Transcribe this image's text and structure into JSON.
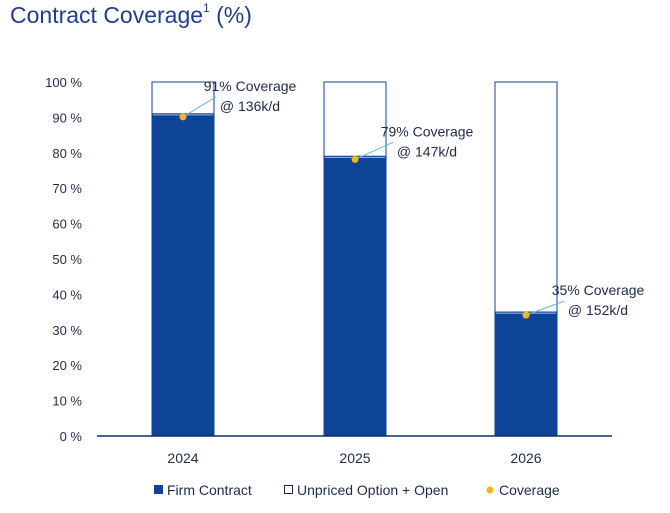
{
  "title": {
    "main": "Contract Coverage",
    "sup": "1",
    "unit": " (%)"
  },
  "chart_data": {
    "type": "bar",
    "stacked": true,
    "categories": [
      "2024",
      "2025",
      "2026"
    ],
    "series": [
      {
        "name": "Firm Contract",
        "values": [
          91,
          79,
          35
        ],
        "color": "#0d4497"
      },
      {
        "name": "Unpriced Option + Open",
        "values": [
          9,
          21,
          65
        ],
        "color": "#ffffff",
        "stroke": "#0d4497"
      }
    ],
    "coverage": {
      "name": "Coverage",
      "values": [
        91,
        79,
        35
      ],
      "color": "#f3b61b",
      "labels": [
        [
          "91% Coverage",
          "@ 136k/d"
        ],
        [
          "79% Coverage",
          "@ 147k/d"
        ],
        [
          "35% Coverage",
          "@ 152k/d"
        ]
      ]
    },
    "y_ticks": [
      "0 %",
      "10 %",
      "20 %",
      "30 %",
      "40 %",
      "50 %",
      "60 %",
      "70 %",
      "80 %",
      "90 %",
      "100 %"
    ],
    "ylim": [
      0,
      100
    ],
    "legend": [
      {
        "label": "Firm Contract",
        "symbol": "filled-square"
      },
      {
        "label": "Unpriced Option + Open",
        "symbol": "open-square"
      },
      {
        "label": "Coverage",
        "symbol": "dot"
      }
    ],
    "leader_color": "#5fb8e6",
    "text_color": "#1c2b4a"
  }
}
